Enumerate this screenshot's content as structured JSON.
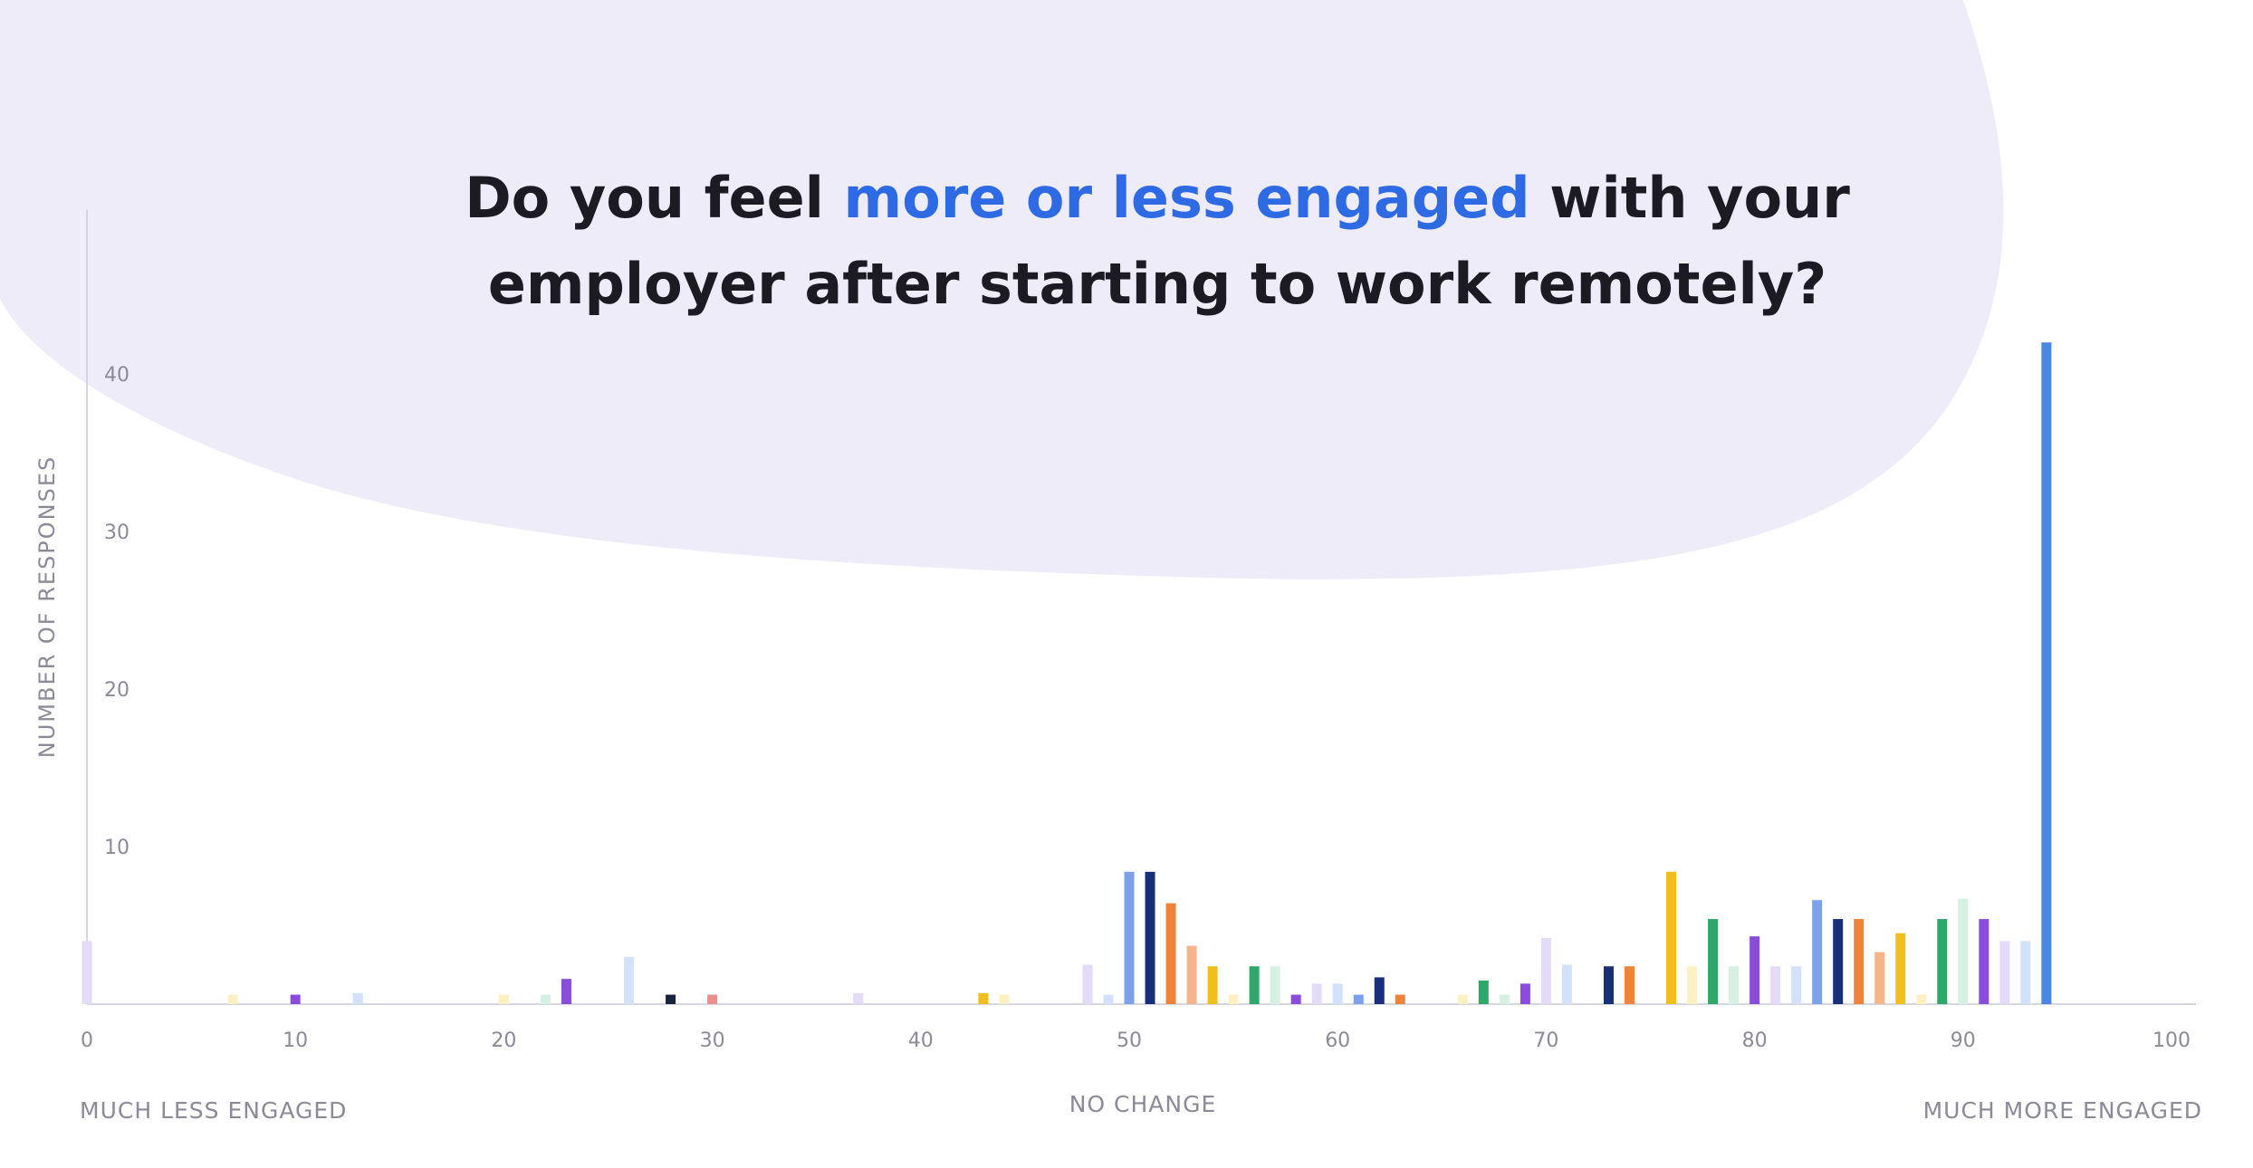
{
  "title": {
    "line1_pre": "Do you feel ",
    "line1_highlight": "more or less engaged",
    "line1_post": " with your",
    "line2": "employer after starting to work remotely?"
  },
  "colors": {
    "background": "#ffffff",
    "blob": "#efecf9",
    "title_text": "#1c1b24",
    "title_highlight": "#2d6ae3",
    "axis": "#d6d6e0",
    "label": "#8a8a99"
  },
  "chart_data": {
    "type": "bar",
    "title": "Do you feel more or less engaged with your employer after starting to work remotely?",
    "xlabel": "",
    "ylabel": "NUMBER OF RESPONSES",
    "xlim": [
      0,
      100
    ],
    "ylim": [
      0,
      42
    ],
    "x_ticks": [
      0,
      10,
      20,
      30,
      40,
      50,
      60,
      70,
      80,
      90,
      100
    ],
    "y_ticks": [
      10,
      20,
      30,
      40
    ],
    "annotations": {
      "left": "MUCH LESS ENGAGED",
      "center": "NO CHANGE",
      "right": "MUCH MORE ENGAGED"
    },
    "grid": false,
    "bars": [
      {
        "x": 0,
        "value": 4,
        "color": "#e3dbf7"
      },
      {
        "x": 7,
        "value": 0.6,
        "color": "#fdf1c4"
      },
      {
        "x": 10,
        "value": 0.6,
        "color": "#8a4ddb"
      },
      {
        "x": 13,
        "value": 0.7,
        "color": "#d3e1fb"
      },
      {
        "x": 20,
        "value": 0.6,
        "color": "#fdf1c4"
      },
      {
        "x": 22,
        "value": 0.6,
        "color": "#d6f0e3"
      },
      {
        "x": 23,
        "value": 1.6,
        "color": "#8a4ddb"
      },
      {
        "x": 26,
        "value": 3,
        "color": "#d3e1fb"
      },
      {
        "x": 28,
        "value": 0.6,
        "color": "#17233f"
      },
      {
        "x": 30,
        "value": 0.6,
        "color": "#ef8c8c"
      },
      {
        "x": 37,
        "value": 0.7,
        "color": "#e3dbf7"
      },
      {
        "x": 43,
        "value": 0.7,
        "color": "#f2be1e"
      },
      {
        "x": 44,
        "value": 0.6,
        "color": "#fdf1c4"
      },
      {
        "x": 48,
        "value": 2.5,
        "color": "#e3dbf7"
      },
      {
        "x": 49,
        "value": 0.6,
        "color": "#d3e1fb"
      },
      {
        "x": 50,
        "value": 8.4,
        "color": "#7aa1ea"
      },
      {
        "x": 51,
        "value": 8.4,
        "color": "#1a2f7a"
      },
      {
        "x": 52,
        "value": 6.4,
        "color": "#ef833a"
      },
      {
        "x": 53,
        "value": 3.7,
        "color": "#f5b48a"
      },
      {
        "x": 54,
        "value": 2.4,
        "color": "#f2be1e"
      },
      {
        "x": 55,
        "value": 0.6,
        "color": "#fdf1c4"
      },
      {
        "x": 56,
        "value": 2.4,
        "color": "#2ea86a"
      },
      {
        "x": 57,
        "value": 2.4,
        "color": "#d6f0e3"
      },
      {
        "x": 58,
        "value": 0.6,
        "color": "#8a4ddb"
      },
      {
        "x": 59,
        "value": 1.3,
        "color": "#e3dbf7"
      },
      {
        "x": 60,
        "value": 1.3,
        "color": "#d3e1fb"
      },
      {
        "x": 61,
        "value": 0.6,
        "color": "#7aa1ea"
      },
      {
        "x": 62,
        "value": 1.7,
        "color": "#1a2f7a"
      },
      {
        "x": 63,
        "value": 0.6,
        "color": "#ef833a"
      },
      {
        "x": 66,
        "value": 0.6,
        "color": "#fdf1c4"
      },
      {
        "x": 67,
        "value": 1.5,
        "color": "#2ea86a"
      },
      {
        "x": 68,
        "value": 0.6,
        "color": "#d6f0e3"
      },
      {
        "x": 69,
        "value": 1.3,
        "color": "#8a4ddb"
      },
      {
        "x": 70,
        "value": 4.2,
        "color": "#e3dbf7"
      },
      {
        "x": 71,
        "value": 2.5,
        "color": "#d3e1fb"
      },
      {
        "x": 73,
        "value": 2.4,
        "color": "#1a2f7a"
      },
      {
        "x": 74,
        "value": 2.4,
        "color": "#ef833a"
      },
      {
        "x": 76,
        "value": 8.4,
        "color": "#f2be1e"
      },
      {
        "x": 77,
        "value": 2.4,
        "color": "#fdf1c4"
      },
      {
        "x": 78,
        "value": 5.4,
        "color": "#2ea86a"
      },
      {
        "x": 79,
        "value": 2.4,
        "color": "#d6f0e3"
      },
      {
        "x": 80,
        "value": 4.3,
        "color": "#8a4ddb"
      },
      {
        "x": 81,
        "value": 2.4,
        "color": "#e3dbf7"
      },
      {
        "x": 82,
        "value": 2.4,
        "color": "#d3e1fb"
      },
      {
        "x": 83,
        "value": 6.6,
        "color": "#7aa1ea"
      },
      {
        "x": 84,
        "value": 5.4,
        "color": "#1a2f7a"
      },
      {
        "x": 85,
        "value": 5.4,
        "color": "#ef833a"
      },
      {
        "x": 86,
        "value": 3.3,
        "color": "#f5b48a"
      },
      {
        "x": 87,
        "value": 4.5,
        "color": "#f2be1e"
      },
      {
        "x": 88,
        "value": 0.6,
        "color": "#fdf1c4"
      },
      {
        "x": 89,
        "value": 5.4,
        "color": "#2ea86a"
      },
      {
        "x": 90,
        "value": 6.7,
        "color": "#d6f0e3"
      },
      {
        "x": 91,
        "value": 5.4,
        "color": "#8a4ddb"
      },
      {
        "x": 92,
        "value": 4,
        "color": "#e3dbf7"
      },
      {
        "x": 93,
        "value": 4,
        "color": "#d3e1fb"
      },
      {
        "x": 94,
        "value": 42,
        "color": "#4a86e4"
      }
    ]
  }
}
